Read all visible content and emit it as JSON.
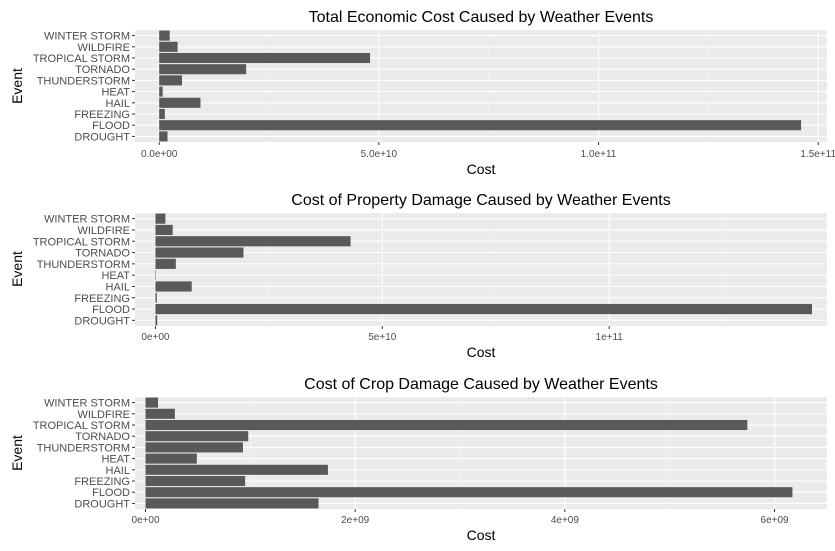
{
  "chart_data": [
    {
      "type": "bar",
      "orientation": "horizontal",
      "title": "Total Economic Cost Caused by Weather Events",
      "xlabel": "Cost",
      "ylabel": "Event",
      "categories": [
        "DROUGHT",
        "FLOOD",
        "FREEZING",
        "HAIL",
        "HEAT",
        "THUNDERSTORM",
        "TORNADO",
        "TROPICAL STORM",
        "WILDFIRE",
        "WINTER STORM"
      ],
      "values": [
        1900000000.0,
        146100000000.0,
        1300000000.0,
        9400000000.0,
        800000000.0,
        5200000000.0,
        19800000000.0,
        48000000000.0,
        4200000000.0,
        2400000000.0
      ],
      "xlim": [
        -5500000000.0,
        152000000000.0
      ],
      "xticks": [
        0,
        50000000000.0,
        100000000000.0,
        150000000000.0
      ],
      "xtick_labels": [
        "0.0e+00",
        "5.0e+10",
        "1.0e+11",
        "1.5e+11"
      ],
      "minor_xticks": [
        25000000000.0,
        75000000000.0,
        125000000000.0
      ],
      "grid": true,
      "bar_color": "#595959",
      "panel_background": "#ebebeb"
    },
    {
      "type": "bar",
      "orientation": "horizontal",
      "title": "Cost of Property Damage Caused by Weather Events",
      "xlabel": "Cost",
      "ylabel": "Event",
      "categories": [
        "DROUGHT",
        "FLOOD",
        "FREEZING",
        "HAIL",
        "HEAT",
        "THUNDERSTORM",
        "TORNADO",
        "TROPICAL STORM",
        "WILDFIRE",
        "WINTER STORM"
      ],
      "values": [
        400000000.0,
        144700000000.0,
        300000000.0,
        8000000000.0,
        0.0,
        4500000000.0,
        19400000000.0,
        43000000000.0,
        3800000000.0,
        2200000000.0
      ],
      "xlim": [
        -4500000000.0,
        148000000000.0
      ],
      "xticks": [
        0,
        50000000000.0,
        100000000000.0
      ],
      "xtick_labels": [
        "0e+00",
        "5e+10",
        "1e+11"
      ],
      "minor_xticks": [
        25000000000.0,
        75000000000.0,
        125000000000.0
      ],
      "grid": true,
      "bar_color": "#595959",
      "panel_background": "#ebebeb"
    },
    {
      "type": "bar",
      "orientation": "horizontal",
      "title": "Cost of Crop Damage Caused by Weather Events",
      "xlabel": "Cost",
      "ylabel": "Event",
      "categories": [
        "DROUGHT",
        "FLOOD",
        "FREEZING",
        "HAIL",
        "HEAT",
        "THUNDERSTORM",
        "TORNADO",
        "TROPICAL STORM",
        "WILDFIRE",
        "WINTER STORM"
      ],
      "values": [
        1650000000.0,
        6170000000.0,
        950000000.0,
        1740000000.0,
        490000000.0,
        930000000.0,
        980000000.0,
        5740000000.0,
        280000000.0,
        120000000.0
      ],
      "xlim": [
        -100000000.0,
        6500000000.0
      ],
      "xticks": [
        0,
        2000000000.0,
        4000000000.0,
        6000000000.0
      ],
      "xtick_labels": [
        "0e+00",
        "2e+09",
        "4e+09",
        "6e+09"
      ],
      "minor_xticks": [
        1000000000.0,
        3000000000.0,
        5000000000.0
      ],
      "grid": true,
      "bar_color": "#595959",
      "panel_background": "#ebebeb"
    }
  ]
}
